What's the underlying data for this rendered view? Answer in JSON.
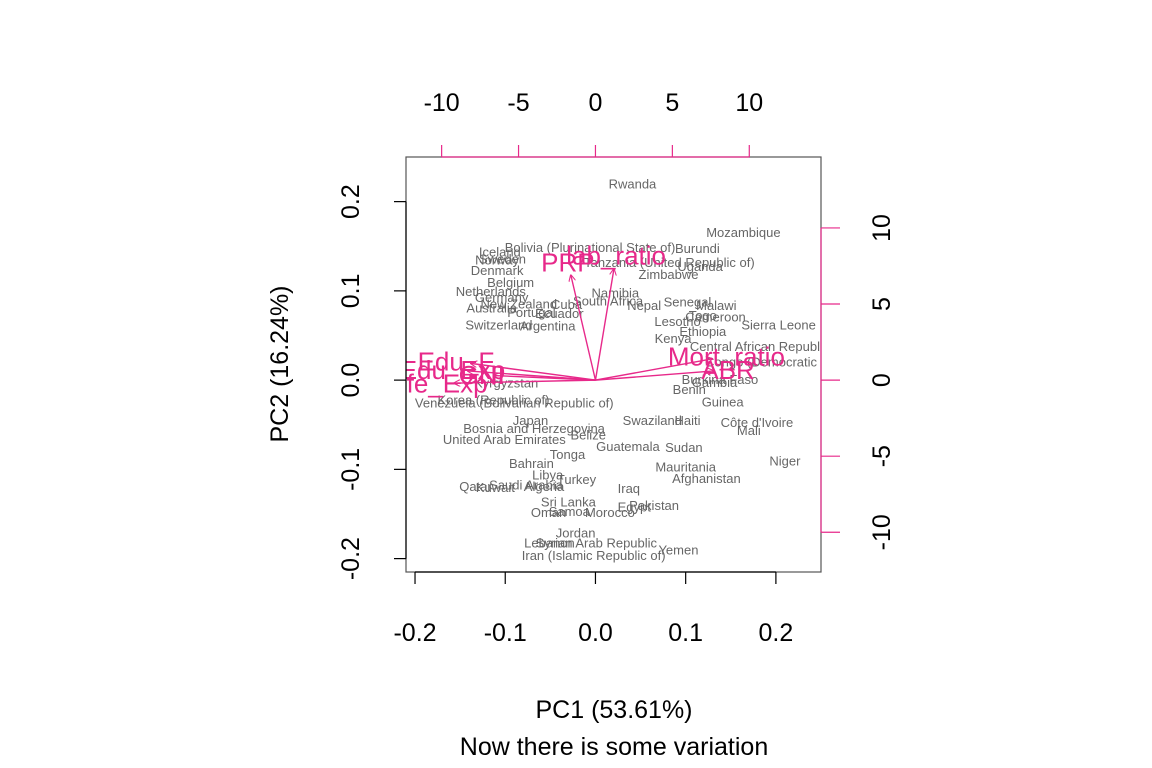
{
  "chart_data": {
    "type": "scatter",
    "subtype": "biplot",
    "title": "",
    "xlabel": "PC1 (53.61%)",
    "ylabel": "PC2 (16.24%)",
    "caption": "Now there is some variation",
    "xlim": [
      -0.21,
      0.25
    ],
    "ylim": [
      -0.215,
      0.25
    ],
    "x_ticks": [
      -0.2,
      -0.1,
      0.0,
      0.1,
      0.2
    ],
    "x_tick_labels": [
      "-0.2",
      "-0.1",
      "0.0",
      "0.1",
      "0.2"
    ],
    "y_ticks": [
      -0.2,
      -0.1,
      0.0,
      0.1,
      0.2
    ],
    "y_tick_labels": [
      "-0.2",
      "-0.1",
      "0.0",
      "0.1",
      "0.2"
    ],
    "top_ticks": [
      -10,
      -5,
      0,
      5,
      10
    ],
    "top_tick_labels": [
      "-10",
      "-5",
      "0",
      "5",
      "10"
    ],
    "right_ticks": [
      -10,
      -5,
      0,
      5,
      10
    ],
    "right_tick_labels": [
      "-10",
      "-5",
      "0",
      "5",
      "10"
    ],
    "loading_scale": 0.01705,
    "point_color": "#666666",
    "arrow_color": "#e7298a",
    "axis_color": "#e7298a",
    "points": [
      {
        "label": "Rwanda",
        "x": 0.041,
        "y": 0.219
      },
      {
        "label": "Mozambique",
        "x": 0.164,
        "y": 0.165
      },
      {
        "label": "Iceland",
        "x": -0.106,
        "y": 0.143
      },
      {
        "label": "Bolivia (Plurinational State of)",
        "x": -0.006,
        "y": 0.148
      },
      {
        "label": "Burundi",
        "x": 0.113,
        "y": 0.147
      },
      {
        "label": "Norway",
        "x": -0.109,
        "y": 0.134
      },
      {
        "label": "Sweden",
        "x": -0.103,
        "y": 0.135
      },
      {
        "label": "Tanzania (United Republic of)",
        "x": 0.082,
        "y": 0.131
      },
      {
        "label": "Uganda",
        "x": 0.116,
        "y": 0.127
      },
      {
        "label": "Denmark",
        "x": -0.109,
        "y": 0.122
      },
      {
        "label": "Zimbabwe",
        "x": 0.081,
        "y": 0.118
      },
      {
        "label": "Belgium",
        "x": -0.094,
        "y": 0.109
      },
      {
        "label": "Netherlands",
        "x": -0.116,
        "y": 0.099
      },
      {
        "label": "Namibia",
        "x": 0.022,
        "y": 0.097
      },
      {
        "label": "Germany",
        "x": -0.104,
        "y": 0.092
      },
      {
        "label": "South Africa",
        "x": 0.014,
        "y": 0.088
      },
      {
        "label": "Senegal",
        "x": 0.102,
        "y": 0.087
      },
      {
        "label": "Malawi",
        "x": 0.134,
        "y": 0.083
      },
      {
        "label": "New Zealand",
        "x": -0.085,
        "y": 0.085
      },
      {
        "label": "Cuba",
        "x": -0.032,
        "y": 0.084
      },
      {
        "label": "Nepal",
        "x": 0.054,
        "y": 0.083
      },
      {
        "label": "Australia",
        "x": -0.115,
        "y": 0.08
      },
      {
        "label": "Portugal",
        "x": -0.071,
        "y": 0.075
      },
      {
        "label": "Ecuador",
        "x": -0.04,
        "y": 0.074
      },
      {
        "label": "Togo",
        "x": 0.119,
        "y": 0.072
      },
      {
        "label": "Cameroon",
        "x": 0.133,
        "y": 0.07
      },
      {
        "label": "Lesotho",
        "x": 0.091,
        "y": 0.065
      },
      {
        "label": "Sierra Leone",
        "x": 0.203,
        "y": 0.061
      },
      {
        "label": "Switzerland",
        "x": -0.107,
        "y": 0.061
      },
      {
        "label": "Argentina",
        "x": -0.053,
        "y": 0.06
      },
      {
        "label": "Ethiopia",
        "x": 0.119,
        "y": 0.054
      },
      {
        "label": "Kenya",
        "x": 0.086,
        "y": 0.046
      },
      {
        "label": "Central African Republic",
        "x": 0.182,
        "y": 0.037
      },
      {
        "label": "Congo (Democratic Republic of the)",
        "x": 0.236,
        "y": 0.02
      },
      {
        "label": "Burkina Faso",
        "x": 0.138,
        "y": -0.0
      },
      {
        "label": "Gambia",
        "x": 0.132,
        "y": -0.003
      },
      {
        "label": "Benin",
        "x": 0.104,
        "y": -0.011
      },
      {
        "label": "Guinea",
        "x": 0.141,
        "y": -0.025
      },
      {
        "label": "Kyrgyzstan",
        "x": -0.099,
        "y": -0.004
      },
      {
        "label": "Korea (Republic of)",
        "x": -0.113,
        "y": -0.023
      },
      {
        "label": "Venezuela (Bolivarian Republic of)",
        "x": -0.09,
        "y": -0.026
      },
      {
        "label": "Haiti",
        "x": 0.102,
        "y": -0.046
      },
      {
        "label": "Swaziland",
        "x": 0.063,
        "y": -0.046
      },
      {
        "label": "Japan",
        "x": -0.072,
        "y": -0.046
      },
      {
        "label": "Bosnia and Herzegovina",
        "x": -0.068,
        "y": -0.055
      },
      {
        "label": "Côte d'Ivoire",
        "x": 0.179,
        "y": -0.048
      },
      {
        "label": "Mali",
        "x": 0.17,
        "y": -0.057
      },
      {
        "label": "Belize",
        "x": -0.008,
        "y": -0.062
      },
      {
        "label": "United Arab Emirates",
        "x": -0.101,
        "y": -0.067
      },
      {
        "label": "Guatemala",
        "x": 0.036,
        "y": -0.075
      },
      {
        "label": "Sudan",
        "x": 0.098,
        "y": -0.076
      },
      {
        "label": "Tonga",
        "x": -0.031,
        "y": -0.084
      },
      {
        "label": "Niger",
        "x": 0.21,
        "y": -0.091
      },
      {
        "label": "Bahrain",
        "x": -0.071,
        "y": -0.094
      },
      {
        "label": "Mauritania",
        "x": 0.1,
        "y": -0.098
      },
      {
        "label": "Afghanistan",
        "x": 0.123,
        "y": -0.111
      },
      {
        "label": "Libya",
        "x": -0.053,
        "y": -0.107
      },
      {
        "label": "Turkey",
        "x": -0.021,
        "y": -0.112
      },
      {
        "label": "Saudi Arabia",
        "x": -0.077,
        "y": -0.118
      },
      {
        "label": "Algeria",
        "x": -0.057,
        "y": -0.12
      },
      {
        "label": "Qatar",
        "x": -0.133,
        "y": -0.12
      },
      {
        "label": "Kuwait",
        "x": -0.111,
        "y": -0.121
      },
      {
        "label": "Iraq",
        "x": 0.037,
        "y": -0.122
      },
      {
        "label": "Sri Lanka",
        "x": -0.03,
        "y": -0.137
      },
      {
        "label": "Pakistan",
        "x": 0.065,
        "y": -0.141
      },
      {
        "label": "Egypt",
        "x": 0.043,
        "y": -0.143
      },
      {
        "label": "Oman",
        "x": -0.052,
        "y": -0.149
      },
      {
        "label": "Samoa",
        "x": -0.029,
        "y": -0.148
      },
      {
        "label": "Morocco",
        "x": 0.016,
        "y": -0.149
      },
      {
        "label": "Jordan",
        "x": -0.022,
        "y": -0.172
      },
      {
        "label": "Lebanon",
        "x": -0.051,
        "y": -0.183
      },
      {
        "label": "Syrian Arab Republic",
        "x": 0.001,
        "y": -0.183
      },
      {
        "label": "Yemen",
        "x": 0.092,
        "y": -0.191
      },
      {
        "label": "Iran (Islamic Republic of)",
        "x": -0.002,
        "y": -0.197
      }
    ],
    "loadings": [
      {
        "name": "Lab_ratio",
        "label": "lab_ratio",
        "x": 1.2,
        "y": 7.3
      },
      {
        "name": "PRP",
        "label": "PRP",
        "x": -1.6,
        "y": 6.9
      },
      {
        "name": "Mort_ratio",
        "label": "Mort_ratio",
        "x": 7.6,
        "y": 1.4
      },
      {
        "name": "ABR",
        "label": "ABR",
        "x": 7.7,
        "y": 0.6
      },
      {
        "name": "Edu_F",
        "label": "Edu_F",
        "x": -8.1,
        "y": 1.1
      },
      {
        "name": "Edu_Exp",
        "label": "Edu_Exp",
        "x": -8.3,
        "y": 0.6
      },
      {
        "name": "GNI",
        "label": "GNI",
        "x": -6.6,
        "y": 0.3
      },
      {
        "name": "Life_Exp",
        "label": "Life_Exp",
        "x": -9.2,
        "y": -0.2
      }
    ]
  }
}
